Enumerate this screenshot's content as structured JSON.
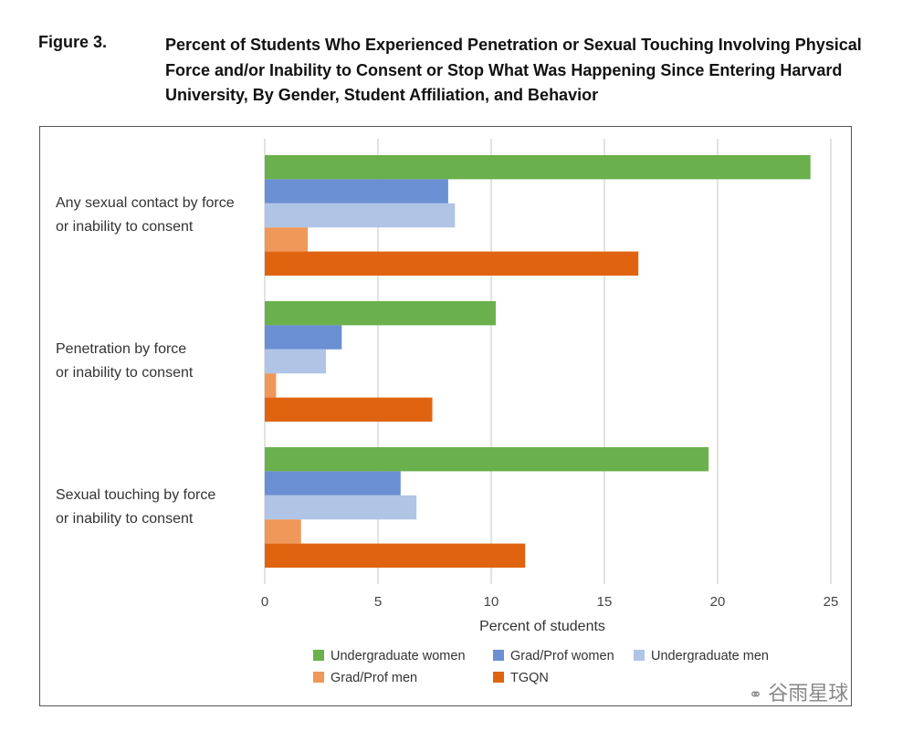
{
  "figure": {
    "label": "Figure 3.",
    "title": "Percent of Students Who Experienced Penetration or Sexual Touching Involving Physical Force and/or Inability to Consent or Stop What Was Happening Since Entering Harvard University, By Gender, Student Affiliation, and Behavior"
  },
  "watermark": "谷雨星球",
  "chart_data": {
    "type": "bar",
    "orientation": "horizontal",
    "title": "Percent of Students Who Experienced Penetration or Sexual Touching Involving Physical Force and/or Inability to Consent or Stop What Was Happening Since Entering Harvard University, By Gender, Student Affiliation, and Behavior",
    "categories": [
      [
        "Any sexual contact by force",
        "or inability to consent"
      ],
      [
        "Penetration by force",
        "or inability to consent"
      ],
      [
        "Sexual touching by force",
        "or inability to consent"
      ]
    ],
    "series": [
      {
        "name": "Undergraduate women",
        "color": "#6ab04c",
        "values": [
          24.1,
          10.2,
          19.6
        ]
      },
      {
        "name": "Grad/Prof women",
        "color": "#6a8fd2",
        "values": [
          8.1,
          3.4,
          6.0
        ]
      },
      {
        "name": "Undergraduate men",
        "color": "#b0c4e6",
        "values": [
          8.4,
          2.7,
          6.7
        ]
      },
      {
        "name": "Grad/Prof men",
        "color": "#f0975a",
        "values": [
          1.9,
          0.5,
          1.6
        ]
      },
      {
        "name": "TGQN",
        "color": "#e0640f",
        "values": [
          16.5,
          7.4,
          11.5
        ]
      }
    ],
    "xlabel": "Percent of students",
    "ylabel": "",
    "xlim": [
      0,
      25
    ],
    "xticks": [
      "0",
      "5",
      "10",
      "15",
      "20",
      "25"
    ],
    "grid": true,
    "legend": "bottom"
  }
}
